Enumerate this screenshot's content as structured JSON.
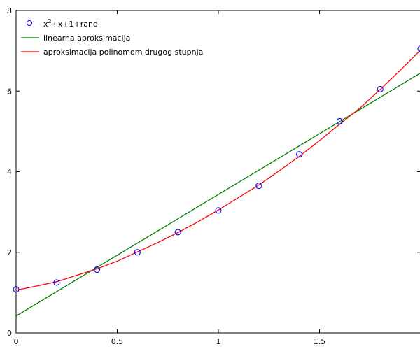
{
  "chart_data": {
    "type": "line",
    "title": "",
    "xlabel": "",
    "ylabel": "",
    "xlim": [
      0,
      2
    ],
    "ylim": [
      0,
      8
    ],
    "xticks": [
      0,
      0.5,
      1,
      1.5
    ],
    "xtick_labels": [
      "0",
      "0.5",
      "1",
      "1.5"
    ],
    "yticks": [
      0,
      2,
      4,
      6,
      8
    ],
    "ytick_labels": [
      "0",
      "2",
      "4",
      "6",
      "8"
    ],
    "grid": false,
    "legend_position": "top-left",
    "series": [
      {
        "name_base": "x",
        "name_superscript": "2",
        "name_rest": "+x+1+rand",
        "kind": "scatter",
        "marker": "circle",
        "color": "#0000ff",
        "x": [
          0,
          0.2,
          0.4,
          0.6,
          0.8,
          1.0,
          1.2,
          1.4,
          1.6,
          1.8,
          2.0
        ],
        "y": [
          1.08,
          1.25,
          1.57,
          2.0,
          2.5,
          3.04,
          3.65,
          4.43,
          5.25,
          6.05,
          7.05
        ]
      },
      {
        "name": "linearna aproksimacija",
        "kind": "line",
        "color": "#008000",
        "x": [
          0,
          2
        ],
        "y": [
          0.42,
          6.45
        ]
      },
      {
        "name": "aproksimacija polinomom drugog stupnja",
        "kind": "line",
        "color": "#ff0000",
        "x": [
          0,
          0.1,
          0.2,
          0.3,
          0.4,
          0.5,
          0.6,
          0.7,
          0.8,
          0.9,
          1.0,
          1.1,
          1.2,
          1.3,
          1.4,
          1.5,
          1.6,
          1.7,
          1.8,
          1.9,
          2.0
        ],
        "y": [
          1.06,
          1.16,
          1.27,
          1.43,
          1.59,
          1.78,
          2.01,
          2.24,
          2.49,
          2.76,
          3.05,
          3.36,
          3.67,
          4.02,
          4.38,
          4.77,
          5.18,
          5.58,
          6.04,
          6.52,
          7.02
        ]
      }
    ]
  }
}
